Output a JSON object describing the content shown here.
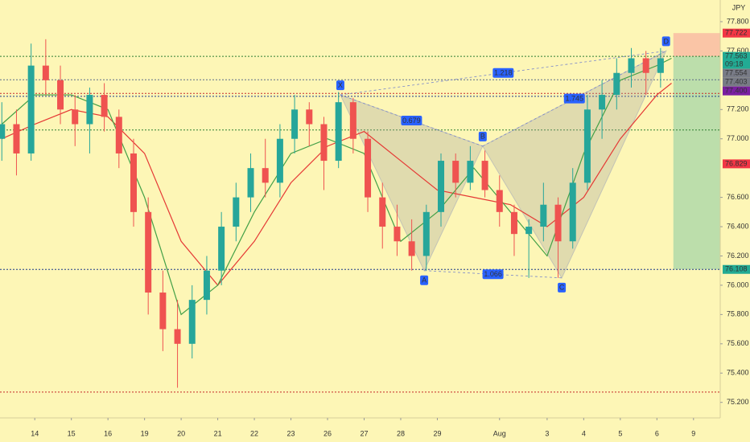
{
  "chart_data": {
    "type": "candlestick",
    "currency": "JPY",
    "xlim": [
      -0.95,
      18.73
    ],
    "ylim": [
      75.094,
      77.948
    ],
    "xticks": [
      {
        "value": 0,
        "label": "14"
      },
      {
        "value": 1,
        "label": "15"
      },
      {
        "value": 2,
        "label": "16"
      },
      {
        "value": 3,
        "label": "19"
      },
      {
        "value": 4,
        "label": "20"
      },
      {
        "value": 5,
        "label": "21"
      },
      {
        "value": 6,
        "label": "22"
      },
      {
        "value": 7,
        "label": "23"
      },
      {
        "value": 8,
        "label": "26"
      },
      {
        "value": 9,
        "label": "27"
      },
      {
        "value": 10,
        "label": "28"
      },
      {
        "value": 11,
        "label": "29"
      },
      {
        "value": 12.7,
        "label": "Aug"
      },
      {
        "value": 14,
        "label": "3"
      },
      {
        "value": 15,
        "label": "4"
      },
      {
        "value": 16,
        "label": "5"
      },
      {
        "value": 17,
        "label": "6"
      },
      {
        "value": 18,
        "label": "9"
      }
    ],
    "yticks": [
      {
        "value": 77.8,
        "label": "77.800"
      },
      {
        "value": 77.6,
        "label": "77.600"
      },
      {
        "value": 77.2,
        "label": "77.200"
      },
      {
        "value": 77.0,
        "label": "77.000"
      },
      {
        "value": 76.6,
        "label": "76.600"
      },
      {
        "value": 76.4,
        "label": "76.400"
      },
      {
        "value": 76.2,
        "label": "76.200"
      },
      {
        "value": 76.0,
        "label": "76.000"
      },
      {
        "value": 75.8,
        "label": "75.800"
      },
      {
        "value": 75.6,
        "label": "75.600"
      },
      {
        "value": 75.4,
        "label": "75.400"
      },
      {
        "value": 75.2,
        "label": "75.200"
      }
    ],
    "up_color": "#26a69a",
    "down_color": "#ef5350",
    "x": [
      -0.9,
      -0.5,
      -0.1,
      0.3,
      0.7,
      1.1,
      1.5,
      1.9,
      2.3,
      2.7,
      3.1,
      3.5,
      3.9,
      4.3,
      4.7,
      5.1,
      5.5,
      5.9,
      6.3,
      6.7,
      7.1,
      7.5,
      7.9,
      8.3,
      8.7,
      9.1,
      9.5,
      9.9,
      10.3,
      10.7,
      11.1,
      11.5,
      11.9,
      12.3,
      12.7,
      13.1,
      13.5,
      13.9,
      14.3,
      14.7,
      15.1,
      15.5,
      15.9,
      16.3,
      16.7,
      17.1
    ],
    "open": [
      77.0,
      77.1,
      76.9,
      77.5,
      77.4,
      77.2,
      77.1,
      77.3,
      77.15,
      76.9,
      76.5,
      75.95,
      75.7,
      75.6,
      75.9,
      76.1,
      76.4,
      76.6,
      76.8,
      76.7,
      77.0,
      77.2,
      77.1,
      76.85,
      77.25,
      77.0,
      76.6,
      76.4,
      76.3,
      76.2,
      76.5,
      76.85,
      76.7,
      76.85,
      76.65,
      76.5,
      76.35,
      76.4,
      76.55,
      76.3,
      76.7,
      77.2,
      77.3,
      77.45,
      77.55,
      77.45
    ],
    "high": [
      77.25,
      77.2,
      77.65,
      77.68,
      77.5,
      77.3,
      77.35,
      77.38,
      77.2,
      77.0,
      76.6,
      76.1,
      75.9,
      76.0,
      76.2,
      76.5,
      76.7,
      76.9,
      77.0,
      77.1,
      77.3,
      77.25,
      77.15,
      77.32,
      77.28,
      77.05,
      76.7,
      76.55,
      76.45,
      76.55,
      76.9,
      76.9,
      76.95,
      76.92,
      76.75,
      76.55,
      76.45,
      76.7,
      76.6,
      76.8,
      77.3,
      77.4,
      77.55,
      77.62,
      77.6,
      77.62
    ],
    "low": [
      76.85,
      76.75,
      76.85,
      77.3,
      77.1,
      76.95,
      76.9,
      77.05,
      76.8,
      76.4,
      75.8,
      75.55,
      75.3,
      75.5,
      75.8,
      76.0,
      76.3,
      76.5,
      76.6,
      76.6,
      76.9,
      76.95,
      76.65,
      76.8,
      76.9,
      76.5,
      76.25,
      76.2,
      76.1,
      76.1,
      76.4,
      76.6,
      76.65,
      76.6,
      76.4,
      76.2,
      76.05,
      76.3,
      76.05,
      76.25,
      76.65,
      77.0,
      77.2,
      77.35,
      77.3,
      77.35
    ],
    "close": [
      77.1,
      76.9,
      77.5,
      77.4,
      77.2,
      77.1,
      77.3,
      77.15,
      76.9,
      76.5,
      75.95,
      75.7,
      75.6,
      75.9,
      76.1,
      76.4,
      76.6,
      76.8,
      76.7,
      77.0,
      77.2,
      77.1,
      76.85,
      77.25,
      77.0,
      76.6,
      76.4,
      76.3,
      76.2,
      76.5,
      76.85,
      76.7,
      76.85,
      76.65,
      76.5,
      76.35,
      76.4,
      76.55,
      76.3,
      76.7,
      77.2,
      77.3,
      77.45,
      77.55,
      77.45,
      77.55
    ],
    "moving_averages": [
      {
        "color": "#e53935",
        "x": [
          -0.9,
          0,
          1,
          2,
          3,
          4,
          5,
          6,
          7,
          8,
          9,
          10,
          11,
          12,
          13,
          14,
          15,
          16,
          17,
          17.4
        ],
        "values": [
          77.0,
          77.1,
          77.2,
          77.15,
          76.9,
          76.3,
          76.0,
          76.3,
          76.7,
          76.95,
          77.05,
          76.85,
          76.65,
          76.6,
          76.55,
          76.4,
          76.6,
          77.0,
          77.3,
          77.38
        ]
      },
      {
        "color": "#43a047",
        "x": [
          -0.9,
          0,
          1,
          2,
          3,
          4,
          5,
          6,
          7,
          8,
          9,
          10,
          11,
          12,
          13,
          14,
          15,
          16,
          17,
          17.4
        ],
        "values": [
          77.1,
          77.3,
          77.3,
          77.2,
          76.6,
          75.8,
          76.0,
          76.5,
          76.9,
          77.0,
          76.9,
          76.3,
          76.5,
          76.8,
          76.5,
          76.2,
          76.9,
          77.4,
          77.5,
          77.55
        ]
      }
    ],
    "levels": [
      {
        "value": 77.563,
        "color": "#2e7d32"
      },
      {
        "value": 77.403,
        "color": "#5c6b8a"
      },
      {
        "value": 77.31,
        "color": "#c62828"
      },
      {
        "value": 77.29,
        "color": "#1e3a8a"
      },
      {
        "value": 77.06,
        "color": "#2e7d32"
      },
      {
        "value": 76.108,
        "color": "#1e3a8a"
      },
      {
        "value": 75.27,
        "color": "#c62828"
      }
    ],
    "pattern": {
      "points": [
        {
          "label": "X",
          "x": 8.35,
          "y": 77.3
        },
        {
          "label": "A",
          "x": 10.64,
          "y": 76.1
        },
        {
          "label": "B",
          "x": 12.24,
          "y": 76.95
        },
        {
          "label": "C",
          "x": 14.4,
          "y": 76.05
        },
        {
          "label": "D",
          "x": 17.25,
          "y": 77.6
        }
      ],
      "ratios": [
        {
          "label": "1.218",
          "from": 0,
          "to": 4
        },
        {
          "label": "0.679",
          "from": 0,
          "to": 2
        },
        {
          "label": "1.066",
          "from": 1,
          "to": 3
        },
        {
          "label": "1.745",
          "from": 2,
          "to": 4
        }
      ]
    },
    "position": {
      "x": 17.45,
      "stop": 77.722,
      "entry": 77.563,
      "target": 76.108
    },
    "price_labels": [
      {
        "value": 77.722,
        "label": "77.722",
        "color": "#f23645"
      },
      {
        "value": 77.563,
        "label": "77.563",
        "color": "#22ab94",
        "sub": "09:18"
      },
      {
        "value": 77.554,
        "label": "77.554",
        "color": "#787b86"
      },
      {
        "value": 77.403,
        "label": "77.403",
        "color": "#787b86"
      },
      {
        "value": 77.4,
        "label": "77.400",
        "color": "#7b1fa2"
      },
      {
        "value": 76.829,
        "label": "76.829",
        "color": "#f23645"
      },
      {
        "value": 76.108,
        "label": "76.108",
        "color": "#22ab94"
      }
    ]
  }
}
